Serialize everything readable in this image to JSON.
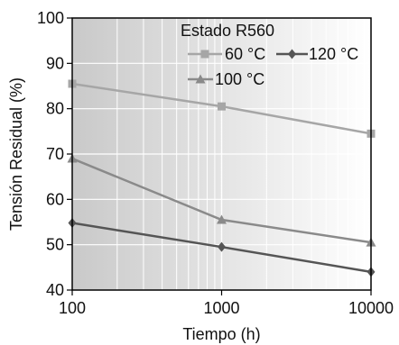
{
  "chart_data": {
    "type": "line",
    "xscale": "log",
    "x": [
      100,
      1000,
      10000
    ],
    "xlim": [
      100,
      10000
    ],
    "ylim": [
      40,
      100
    ],
    "xticks": [
      "100",
      "1000",
      "10000"
    ],
    "yticks": [
      "40",
      "50",
      "60",
      "70",
      "80",
      "90",
      "100"
    ],
    "xlabel": "Tiempo (h)",
    "ylabel": "Tensión Residual (%)",
    "legend_title": "Estado R560",
    "legend_position": "top-right",
    "grid": true,
    "background": "gray-gradient",
    "series": [
      {
        "name": "60 °C",
        "values": [
          85.5,
          80.5,
          74.5
        ],
        "color": "#a6a6a6",
        "marker": "square"
      },
      {
        "name": "100 °C",
        "values": [
          69,
          55.5,
          50.5
        ],
        "color": "#8a8a8a",
        "marker": "triangle"
      },
      {
        "name": "120 °C",
        "values": [
          54.8,
          49.5,
          44
        ],
        "color": "#555555",
        "marker": "diamond"
      }
    ]
  }
}
